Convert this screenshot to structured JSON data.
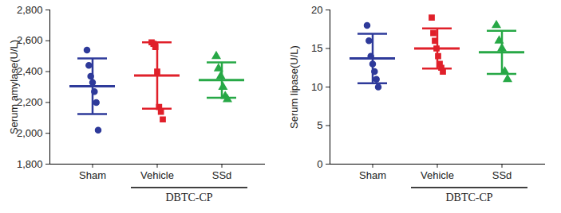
{
  "chart_data": [
    {
      "type": "scatter",
      "y_label": "Serum amylase(U/L)",
      "categories": [
        "Sham",
        "Vehicle",
        "SSd"
      ],
      "colors": [
        "#2e3a9a",
        "#e0202a",
        "#27a846"
      ],
      "markers": [
        "circle",
        "square",
        "triangle"
      ],
      "points": [
        [
          2540,
          2440,
          2370,
          2330,
          2270,
          2200,
          2020
        ],
        [
          2590,
          2580,
          2560,
          2400,
          2170,
          2140,
          2090
        ],
        [
          2500,
          2420,
          2370,
          2300,
          2240,
          2220
        ]
      ],
      "means": [
        2305,
        2375,
        2345
      ],
      "errors": [
        180,
        215,
        115
      ],
      "ylim": [
        1800,
        2800
      ],
      "yticks": [
        1800,
        2000,
        2200,
        2400,
        2600,
        2800
      ],
      "bracket": {
        "label": "DBTC-CP",
        "categories": [
          "Vehicle",
          "SSd"
        ]
      }
    },
    {
      "type": "scatter",
      "y_label": "Serum lipase(U/L)",
      "categories": [
        "Sham",
        "Vehicle",
        "SSd"
      ],
      "colors": [
        "#2e3a9a",
        "#e0202a",
        "#27a846"
      ],
      "markers": [
        "circle",
        "square",
        "triangle"
      ],
      "points": [
        [
          18,
          16,
          14,
          13,
          12,
          11,
          10
        ],
        [
          19,
          17,
          16,
          15,
          14,
          13,
          12.5,
          12
        ],
        [
          18,
          16,
          15,
          12,
          11
        ]
      ],
      "means": [
        13.7,
        15,
        14.5
      ],
      "errors": [
        3.2,
        2.6,
        2.8
      ],
      "ylim": [
        0,
        20
      ],
      "yticks": [
        0,
        5,
        10,
        15,
        20
      ],
      "bracket": {
        "label": "DBTC-CP",
        "categories": [
          "Vehicle",
          "SSd"
        ]
      }
    }
  ]
}
